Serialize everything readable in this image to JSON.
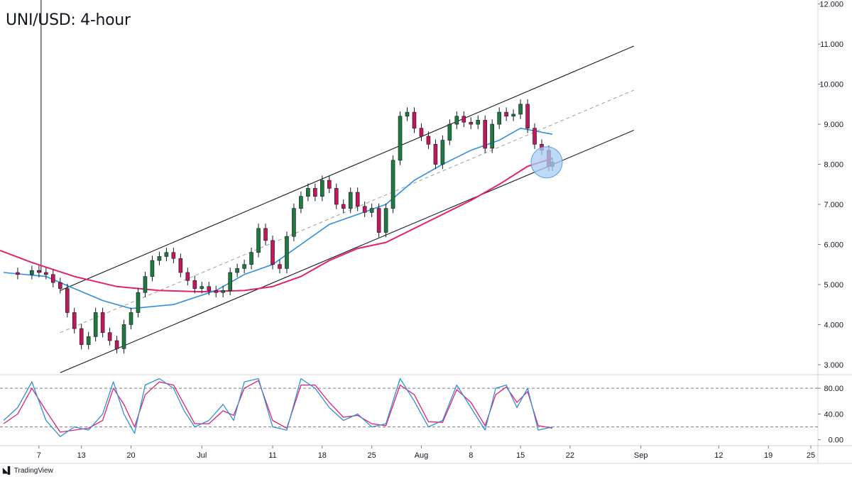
{
  "header": {
    "title": "UNI/USD: 4-hour"
  },
  "branding": {
    "label": "TradingView",
    "logo": "tradingview-logo-icon"
  },
  "chart_data": {
    "type": "line",
    "title": "UNI/USD: 4-hour",
    "price_axis": {
      "ticks": [
        3,
        4,
        5,
        6,
        7,
        8,
        9,
        10,
        11,
        12
      ],
      "tick_labels": [
        "3.000",
        "4.000",
        "5.000",
        "6.000",
        "7.000",
        "8.000",
        "9.000",
        "10.000",
        "11.000",
        "12.000"
      ],
      "ylim": [
        2.75,
        12.1
      ]
    },
    "time_axis": {
      "ticks": [
        {
          "day": 7,
          "label": "7"
        },
        {
          "day": 13,
          "label": "13"
        },
        {
          "day": 20,
          "label": "20"
        },
        {
          "day": 30,
          "label": "Jul"
        },
        {
          "day": 40,
          "label": "11"
        },
        {
          "day": 47,
          "label": "18"
        },
        {
          "day": 54,
          "label": "25"
        },
        {
          "day": 61,
          "label": "Aug"
        },
        {
          "day": 68,
          "label": "8"
        },
        {
          "day": 75,
          "label": "15"
        },
        {
          "day": 82,
          "label": "22"
        },
        {
          "day": 92,
          "label": "Sep"
        },
        {
          "day": 103,
          "label": "12"
        },
        {
          "day": 110,
          "label": "19"
        },
        {
          "day": 116,
          "label": "25"
        }
      ],
      "xlim": [
        1.5,
        117
      ]
    },
    "price_series": [
      {
        "day": 2,
        "v": 5.3
      },
      {
        "day": 4,
        "v": 5.25
      },
      {
        "day": 6,
        "v": 5.35
      },
      {
        "day": 7,
        "v": 5.3
      },
      {
        "day": 8,
        "v": 5.25
      },
      {
        "day": 9,
        "v": 5.05
      },
      {
        "day": 10,
        "v": 4.9
      },
      {
        "day": 11,
        "v": 4.3
      },
      {
        "day": 12,
        "v": 3.9
      },
      {
        "day": 13,
        "v": 3.5
      },
      {
        "day": 14,
        "v": 3.7
      },
      {
        "day": 15,
        "v": 4.3
      },
      {
        "day": 16,
        "v": 3.8
      },
      {
        "day": 17,
        "v": 3.6
      },
      {
        "day": 18,
        "v": 3.4
      },
      {
        "day": 19,
        "v": 4.0
      },
      {
        "day": 20,
        "v": 4.3
      },
      {
        "day": 21,
        "v": 4.8
      },
      {
        "day": 22,
        "v": 5.2
      },
      {
        "day": 23,
        "v": 5.6
      },
      {
        "day": 24,
        "v": 5.7
      },
      {
        "day": 25,
        "v": 5.8
      },
      {
        "day": 26,
        "v": 5.65
      },
      {
        "day": 27,
        "v": 5.3
      },
      {
        "day": 28,
        "v": 5.1
      },
      {
        "day": 29,
        "v": 4.9
      },
      {
        "day": 30,
        "v": 4.95
      },
      {
        "day": 31,
        "v": 4.85
      },
      {
        "day": 32,
        "v": 4.8
      },
      {
        "day": 33,
        "v": 4.85
      },
      {
        "day": 34,
        "v": 5.3
      },
      {
        "day": 35,
        "v": 5.4
      },
      {
        "day": 36,
        "v": 5.5
      },
      {
        "day": 37,
        "v": 5.8
      },
      {
        "day": 38,
        "v": 6.4
      },
      {
        "day": 39,
        "v": 6.1
      },
      {
        "day": 40,
        "v": 5.5
      },
      {
        "day": 41,
        "v": 5.4
      },
      {
        "day": 42,
        "v": 6.2
      },
      {
        "day": 43,
        "v": 6.9
      },
      {
        "day": 44,
        "v": 7.2
      },
      {
        "day": 45,
        "v": 7.4
      },
      {
        "day": 46,
        "v": 7.2
      },
      {
        "day": 47,
        "v": 7.6
      },
      {
        "day": 48,
        "v": 7.4
      },
      {
        "day": 49,
        "v": 7.0
      },
      {
        "day": 50,
        "v": 6.9
      },
      {
        "day": 51,
        "v": 7.3
      },
      {
        "day": 52,
        "v": 6.95
      },
      {
        "day": 53,
        "v": 6.8
      },
      {
        "day": 54,
        "v": 6.9
      },
      {
        "day": 55,
        "v": 6.3
      },
      {
        "day": 56,
        "v": 6.9
      },
      {
        "day": 57,
        "v": 8.1
      },
      {
        "day": 58,
        "v": 9.2
      },
      {
        "day": 59,
        "v": 9.3
      },
      {
        "day": 60,
        "v": 8.9
      },
      {
        "day": 61,
        "v": 8.7
      },
      {
        "day": 62,
        "v": 8.5
      },
      {
        "day": 63,
        "v": 8.0
      },
      {
        "day": 64,
        "v": 8.6
      },
      {
        "day": 65,
        "v": 9.0
      },
      {
        "day": 66,
        "v": 9.2
      },
      {
        "day": 67,
        "v": 9.05
      },
      {
        "day": 68,
        "v": 9.0
      },
      {
        "day": 69,
        "v": 9.1
      },
      {
        "day": 70,
        "v": 8.4
      },
      {
        "day": 71,
        "v": 9.0
      },
      {
        "day": 72,
        "v": 9.3
      },
      {
        "day": 73,
        "v": 9.2
      },
      {
        "day": 74,
        "v": 9.25
      },
      {
        "day": 75,
        "v": 9.5
      },
      {
        "day": 76,
        "v": 8.9
      },
      {
        "day": 77,
        "v": 8.5
      },
      {
        "day": 78,
        "v": 8.35
      },
      {
        "day": 79,
        "v": 7.95
      },
      {
        "day": 79.5,
        "v": 8.05
      }
    ],
    "ma_fast": {
      "color": "#2f8fe0",
      "points": [
        {
          "day": 2,
          "v": 5.3
        },
        {
          "day": 8,
          "v": 5.2
        },
        {
          "day": 12,
          "v": 4.9
        },
        {
          "day": 16,
          "v": 4.6
        },
        {
          "day": 20,
          "v": 4.4
        },
        {
          "day": 26,
          "v": 4.5
        },
        {
          "day": 32,
          "v": 4.85
        },
        {
          "day": 36,
          "v": 5.25
        },
        {
          "day": 40,
          "v": 5.5
        },
        {
          "day": 44,
          "v": 6.0
        },
        {
          "day": 48,
          "v": 6.5
        },
        {
          "day": 52,
          "v": 6.75
        },
        {
          "day": 56,
          "v": 7.0
        },
        {
          "day": 60,
          "v": 7.6
        },
        {
          "day": 64,
          "v": 8.0
        },
        {
          "day": 68,
          "v": 8.35
        },
        {
          "day": 72,
          "v": 8.6
        },
        {
          "day": 75,
          "v": 8.9
        },
        {
          "day": 79.5,
          "v": 8.75
        }
      ]
    },
    "ma_slow": {
      "color": "#e2226d",
      "points": [
        {
          "day": 1.5,
          "v": 5.85
        },
        {
          "day": 6,
          "v": 5.55
        },
        {
          "day": 12,
          "v": 5.2
        },
        {
          "day": 18,
          "v": 4.95
        },
        {
          "day": 24,
          "v": 4.85
        },
        {
          "day": 30,
          "v": 4.82
        },
        {
          "day": 36,
          "v": 4.85
        },
        {
          "day": 40,
          "v": 4.95
        },
        {
          "day": 44,
          "v": 5.2
        },
        {
          "day": 48,
          "v": 5.6
        },
        {
          "day": 52,
          "v": 5.9
        },
        {
          "day": 56,
          "v": 6.05
        },
        {
          "day": 60,
          "v": 6.4
        },
        {
          "day": 64,
          "v": 6.75
        },
        {
          "day": 68,
          "v": 7.1
        },
        {
          "day": 72,
          "v": 7.5
        },
        {
          "day": 76,
          "v": 7.95
        },
        {
          "day": 79.5,
          "v": 8.15
        }
      ]
    },
    "channel": {
      "upper": {
        "from": {
          "day": 10,
          "v": 4.85
        },
        "to": {
          "day": 91,
          "v": 10.95
        },
        "color": "#131722"
      },
      "lower": {
        "from": {
          "day": 10,
          "v": 2.8
        },
        "to": {
          "day": 91,
          "v": 8.85
        },
        "color": "#131722"
      },
      "mid": {
        "from": {
          "day": 10,
          "v": 3.8
        },
        "to": {
          "day": 91,
          "v": 9.85
        },
        "color": "#9e9e9e"
      }
    },
    "vertical_marker": {
      "day": 7.3,
      "color": "#131722"
    },
    "highlight": {
      "day": 79,
      "v": 8.05,
      "color": "#a8ccf2"
    },
    "oscillator": {
      "ticks": [
        0,
        40,
        80
      ],
      "tick_labels": [
        "0.00",
        "40.00",
        "80.00"
      ],
      "dashed_levels": [
        20,
        80
      ],
      "ylim": [
        -8,
        100
      ],
      "k_color": "#2f8fe0",
      "d_color": "#e2226d",
      "k": [
        {
          "day": 2,
          "v": 30
        },
        {
          "day": 4,
          "v": 50
        },
        {
          "day": 6,
          "v": 90
        },
        {
          "day": 8,
          "v": 30
        },
        {
          "day": 10,
          "v": 5
        },
        {
          "day": 12,
          "v": 20
        },
        {
          "day": 14,
          "v": 15
        },
        {
          "day": 16,
          "v": 40
        },
        {
          "day": 17.5,
          "v": 90
        },
        {
          "day": 19,
          "v": 40
        },
        {
          "day": 20.5,
          "v": 10
        },
        {
          "day": 22,
          "v": 85
        },
        {
          "day": 24,
          "v": 95
        },
        {
          "day": 26,
          "v": 80
        },
        {
          "day": 27.5,
          "v": 45
        },
        {
          "day": 29,
          "v": 20
        },
        {
          "day": 31,
          "v": 30
        },
        {
          "day": 33,
          "v": 55
        },
        {
          "day": 34.5,
          "v": 30
        },
        {
          "day": 36,
          "v": 90
        },
        {
          "day": 38,
          "v": 95
        },
        {
          "day": 40,
          "v": 20
        },
        {
          "day": 42,
          "v": 15
        },
        {
          "day": 44,
          "v": 95
        },
        {
          "day": 46,
          "v": 80
        },
        {
          "day": 48,
          "v": 50
        },
        {
          "day": 50,
          "v": 30
        },
        {
          "day": 52,
          "v": 40
        },
        {
          "day": 54,
          "v": 20
        },
        {
          "day": 56,
          "v": 25
        },
        {
          "day": 58,
          "v": 95
        },
        {
          "day": 60,
          "v": 60
        },
        {
          "day": 62,
          "v": 20
        },
        {
          "day": 64,
          "v": 30
        },
        {
          "day": 66,
          "v": 85
        },
        {
          "day": 68,
          "v": 50
        },
        {
          "day": 70,
          "v": 15
        },
        {
          "day": 71.5,
          "v": 80
        },
        {
          "day": 73,
          "v": 85
        },
        {
          "day": 74.5,
          "v": 50
        },
        {
          "day": 76,
          "v": 80
        },
        {
          "day": 77.5,
          "v": 15
        },
        {
          "day": 79.5,
          "v": 20
        }
      ],
      "d": [
        {
          "day": 2,
          "v": 25
        },
        {
          "day": 4,
          "v": 40
        },
        {
          "day": 6,
          "v": 80
        },
        {
          "day": 8,
          "v": 45
        },
        {
          "day": 10,
          "v": 12
        },
        {
          "day": 12,
          "v": 15
        },
        {
          "day": 14,
          "v": 18
        },
        {
          "day": 16,
          "v": 30
        },
        {
          "day": 17.5,
          "v": 80
        },
        {
          "day": 19,
          "v": 55
        },
        {
          "day": 20.5,
          "v": 20
        },
        {
          "day": 22,
          "v": 70
        },
        {
          "day": 24,
          "v": 90
        },
        {
          "day": 26,
          "v": 85
        },
        {
          "day": 27.5,
          "v": 55
        },
        {
          "day": 29,
          "v": 25
        },
        {
          "day": 31,
          "v": 25
        },
        {
          "day": 33,
          "v": 45
        },
        {
          "day": 34.5,
          "v": 38
        },
        {
          "day": 36,
          "v": 80
        },
        {
          "day": 38,
          "v": 92
        },
        {
          "day": 40,
          "v": 30
        },
        {
          "day": 42,
          "v": 18
        },
        {
          "day": 44,
          "v": 85
        },
        {
          "day": 46,
          "v": 85
        },
        {
          "day": 48,
          "v": 58
        },
        {
          "day": 50,
          "v": 35
        },
        {
          "day": 52,
          "v": 38
        },
        {
          "day": 54,
          "v": 25
        },
        {
          "day": 56,
          "v": 22
        },
        {
          "day": 58,
          "v": 85
        },
        {
          "day": 60,
          "v": 70
        },
        {
          "day": 62,
          "v": 28
        },
        {
          "day": 64,
          "v": 27
        },
        {
          "day": 66,
          "v": 78
        },
        {
          "day": 68,
          "v": 58
        },
        {
          "day": 70,
          "v": 22
        },
        {
          "day": 71.5,
          "v": 70
        },
        {
          "day": 73,
          "v": 82
        },
        {
          "day": 74.5,
          "v": 58
        },
        {
          "day": 76,
          "v": 75
        },
        {
          "day": 77.5,
          "v": 22
        },
        {
          "day": 79.5,
          "v": 18
        }
      ]
    }
  }
}
